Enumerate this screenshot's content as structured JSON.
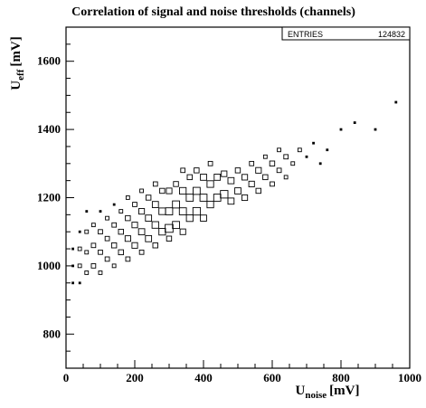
{
  "chart_data": {
    "type": "box-histogram-2d",
    "title": "Correlation of signal and noise thresholds (channels)",
    "xlabel": {
      "main": "U",
      "sub": "noise",
      "unit": "[mV]"
    },
    "ylabel": {
      "main": "U",
      "sub": "eff",
      "unit": "[mV]"
    },
    "xlim": [
      0,
      1000
    ],
    "ylim": [
      700,
      1700
    ],
    "xticks": [
      "0",
      "200",
      "400",
      "600",
      "800",
      "1000"
    ],
    "xtick_values": [
      0,
      200,
      400,
      600,
      800,
      1000
    ],
    "yticks": [
      "800",
      "1000",
      "1200",
      "1400",
      "1600"
    ],
    "ytick_values": [
      800,
      1000,
      1200,
      1400,
      1600
    ],
    "stats": {
      "label": "ENTRIES",
      "value": "124832"
    },
    "bins": {
      "x_count": 50,
      "y_count": 50
    },
    "cells": [
      [
        20,
        950,
        1
      ],
      [
        20,
        1000,
        1
      ],
      [
        20,
        1050,
        1
      ],
      [
        40,
        950,
        1
      ],
      [
        40,
        1000,
        2
      ],
      [
        40,
        1050,
        2
      ],
      [
        40,
        1100,
        1
      ],
      [
        60,
        980,
        2
      ],
      [
        60,
        1040,
        2
      ],
      [
        60,
        1100,
        2
      ],
      [
        60,
        1160,
        1
      ],
      [
        80,
        1000,
        3
      ],
      [
        80,
        1060,
        3
      ],
      [
        80,
        1120,
        2
      ],
      [
        100,
        980,
        2
      ],
      [
        100,
        1040,
        3
      ],
      [
        100,
        1100,
        3
      ],
      [
        100,
        1160,
        1
      ],
      [
        120,
        1020,
        3
      ],
      [
        120,
        1080,
        3
      ],
      [
        120,
        1140,
        2
      ],
      [
        140,
        1000,
        2
      ],
      [
        140,
        1060,
        4
      ],
      [
        140,
        1120,
        3
      ],
      [
        140,
        1180,
        1
      ],
      [
        160,
        1040,
        4
      ],
      [
        160,
        1100,
        4
      ],
      [
        160,
        1160,
        2
      ],
      [
        180,
        1020,
        3
      ],
      [
        180,
        1080,
        5
      ],
      [
        180,
        1140,
        4
      ],
      [
        180,
        1200,
        2
      ],
      [
        200,
        1060,
        5
      ],
      [
        200,
        1120,
        5
      ],
      [
        200,
        1180,
        3
      ],
      [
        220,
        1040,
        3
      ],
      [
        220,
        1100,
        6
      ],
      [
        220,
        1160,
        5
      ],
      [
        220,
        1220,
        2
      ],
      [
        240,
        1080,
        6
      ],
      [
        240,
        1140,
        6
      ],
      [
        240,
        1200,
        4
      ],
      [
        260,
        1060,
        4
      ],
      [
        260,
        1120,
        7
      ],
      [
        260,
        1180,
        6
      ],
      [
        260,
        1240,
        3
      ],
      [
        280,
        1100,
        7
      ],
      [
        280,
        1160,
        7
      ],
      [
        280,
        1220,
        4
      ],
      [
        300,
        1080,
        4
      ],
      [
        300,
        1110,
        10
      ],
      [
        300,
        1160,
        8
      ],
      [
        300,
        1220,
        5
      ],
      [
        320,
        1120,
        8
      ],
      [
        320,
        1180,
        8
      ],
      [
        320,
        1240,
        4
      ],
      [
        340,
        1100,
        5
      ],
      [
        340,
        1160,
        8
      ],
      [
        340,
        1220,
        7
      ],
      [
        340,
        1280,
        3
      ],
      [
        360,
        1140,
        7
      ],
      [
        360,
        1200,
        8
      ],
      [
        360,
        1260,
        4
      ],
      [
        380,
        1160,
        9
      ],
      [
        380,
        1220,
        8
      ],
      [
        380,
        1280,
        4
      ],
      [
        400,
        1140,
        6
      ],
      [
        400,
        1200,
        8
      ],
      [
        400,
        1260,
        6
      ],
      [
        420,
        1180,
        7
      ],
      [
        420,
        1240,
        7
      ],
      [
        420,
        1300,
        3
      ],
      [
        440,
        1200,
        8
      ],
      [
        440,
        1260,
        6
      ],
      [
        460,
        1210,
        9
      ],
      [
        460,
        1270,
        5
      ],
      [
        480,
        1190,
        6
      ],
      [
        480,
        1250,
        6
      ],
      [
        500,
        1220,
        6
      ],
      [
        500,
        1280,
        4
      ],
      [
        520,
        1200,
        5
      ],
      [
        520,
        1260,
        5
      ],
      [
        540,
        1240,
        5
      ],
      [
        540,
        1300,
        3
      ],
      [
        560,
        1220,
        4
      ],
      [
        560,
        1280,
        5
      ],
      [
        580,
        1260,
        4
      ],
      [
        580,
        1320,
        2
      ],
      [
        600,
        1240,
        3
      ],
      [
        600,
        1300,
        4
      ],
      [
        620,
        1280,
        3
      ],
      [
        620,
        1340,
        2
      ],
      [
        640,
        1260,
        2
      ],
      [
        640,
        1320,
        3
      ],
      [
        660,
        1300,
        2
      ],
      [
        680,
        1340,
        2
      ],
      [
        700,
        1320,
        1
      ],
      [
        720,
        1360,
        1
      ],
      [
        740,
        1300,
        1
      ],
      [
        760,
        1340,
        1
      ],
      [
        800,
        1400,
        1
      ],
      [
        840,
        1420,
        1
      ],
      [
        900,
        1400,
        1
      ],
      [
        960,
        1480,
        1
      ]
    ]
  }
}
